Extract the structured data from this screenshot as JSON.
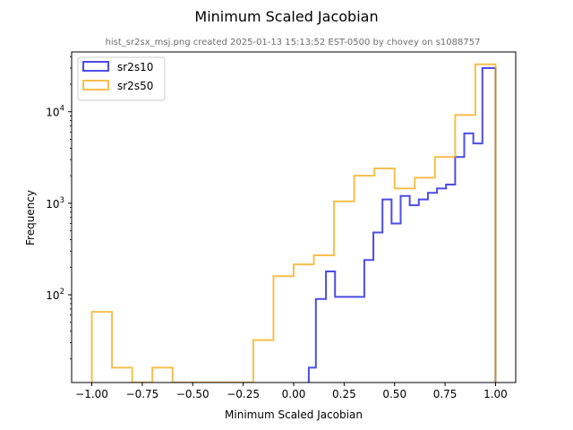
{
  "chart_data": {
    "type": "histogram",
    "title": "Minimum Scaled Jacobian",
    "subtitle": "hist_sr2sx_msj.png created 2025-01-13 15:13:52 EST-0500 by chovey on s1088757",
    "xlabel": "Minimum Scaled Jacobian",
    "ylabel": "Frequency",
    "xlim": [
      -1.1,
      1.1
    ],
    "ylim_log": [
      11,
      45000
    ],
    "yscale": "log",
    "x_ticks": [
      -1.0,
      -0.75,
      -0.5,
      -0.25,
      0.0,
      0.25,
      0.5,
      0.75,
      1.0
    ],
    "x_tick_labels": [
      "−1.00",
      "−0.75",
      "−0.50",
      "−0.25",
      "0.00",
      "0.25",
      "0.50",
      "0.75",
      "1.00"
    ],
    "y_ticks": [
      100,
      1000,
      10000
    ],
    "y_tick_labels": [
      {
        "base": "10",
        "exp": "2"
      },
      {
        "base": "10",
        "exp": "3"
      },
      {
        "base": "10",
        "exp": "4"
      }
    ],
    "legend_position": "upper-left",
    "series": [
      {
        "name": "sr2s10",
        "color": "#0000dd",
        "bins": [
          [
            0.075,
            0.11,
            16
          ],
          [
            0.11,
            0.16,
            90
          ],
          [
            0.16,
            0.205,
            180
          ],
          [
            0.205,
            0.35,
            95
          ],
          [
            0.35,
            0.395,
            240
          ],
          [
            0.395,
            0.44,
            480
          ],
          [
            0.44,
            0.485,
            1100
          ],
          [
            0.485,
            0.53,
            600
          ],
          [
            0.53,
            0.575,
            1200
          ],
          [
            0.575,
            0.62,
            950
          ],
          [
            0.62,
            0.665,
            1100
          ],
          [
            0.665,
            0.71,
            1300
          ],
          [
            0.71,
            0.755,
            1450
          ],
          [
            0.755,
            0.8,
            1600
          ],
          [
            0.8,
            0.845,
            3200
          ],
          [
            0.845,
            0.89,
            5800
          ],
          [
            0.89,
            0.935,
            4500
          ],
          [
            0.935,
            0.98,
            30000
          ],
          [
            0.98,
            1.0,
            30000
          ]
        ]
      },
      {
        "name": "sr2s50",
        "color": "#f5a300",
        "bins": [
          [
            -1.0,
            -0.9,
            65
          ],
          [
            -0.9,
            -0.8,
            16
          ],
          [
            -0.8,
            -0.7,
            11
          ],
          [
            -0.7,
            -0.6,
            16
          ],
          [
            -0.6,
            -0.5,
            11
          ],
          [
            -0.5,
            -0.4,
            11
          ],
          [
            -0.4,
            -0.3,
            11
          ],
          [
            -0.3,
            -0.2,
            11
          ],
          [
            -0.2,
            -0.1,
            32
          ],
          [
            -0.1,
            0.0,
            160
          ],
          [
            0.0,
            0.1,
            215
          ],
          [
            0.1,
            0.2,
            270
          ],
          [
            0.2,
            0.3,
            1050
          ],
          [
            0.3,
            0.4,
            2000
          ],
          [
            0.4,
            0.5,
            2400
          ],
          [
            0.5,
            0.6,
            1450
          ],
          [
            0.6,
            0.7,
            1900
          ],
          [
            0.7,
            0.8,
            3200
          ],
          [
            0.8,
            0.9,
            9200
          ],
          [
            0.9,
            1.0,
            33000
          ]
        ]
      }
    ]
  }
}
